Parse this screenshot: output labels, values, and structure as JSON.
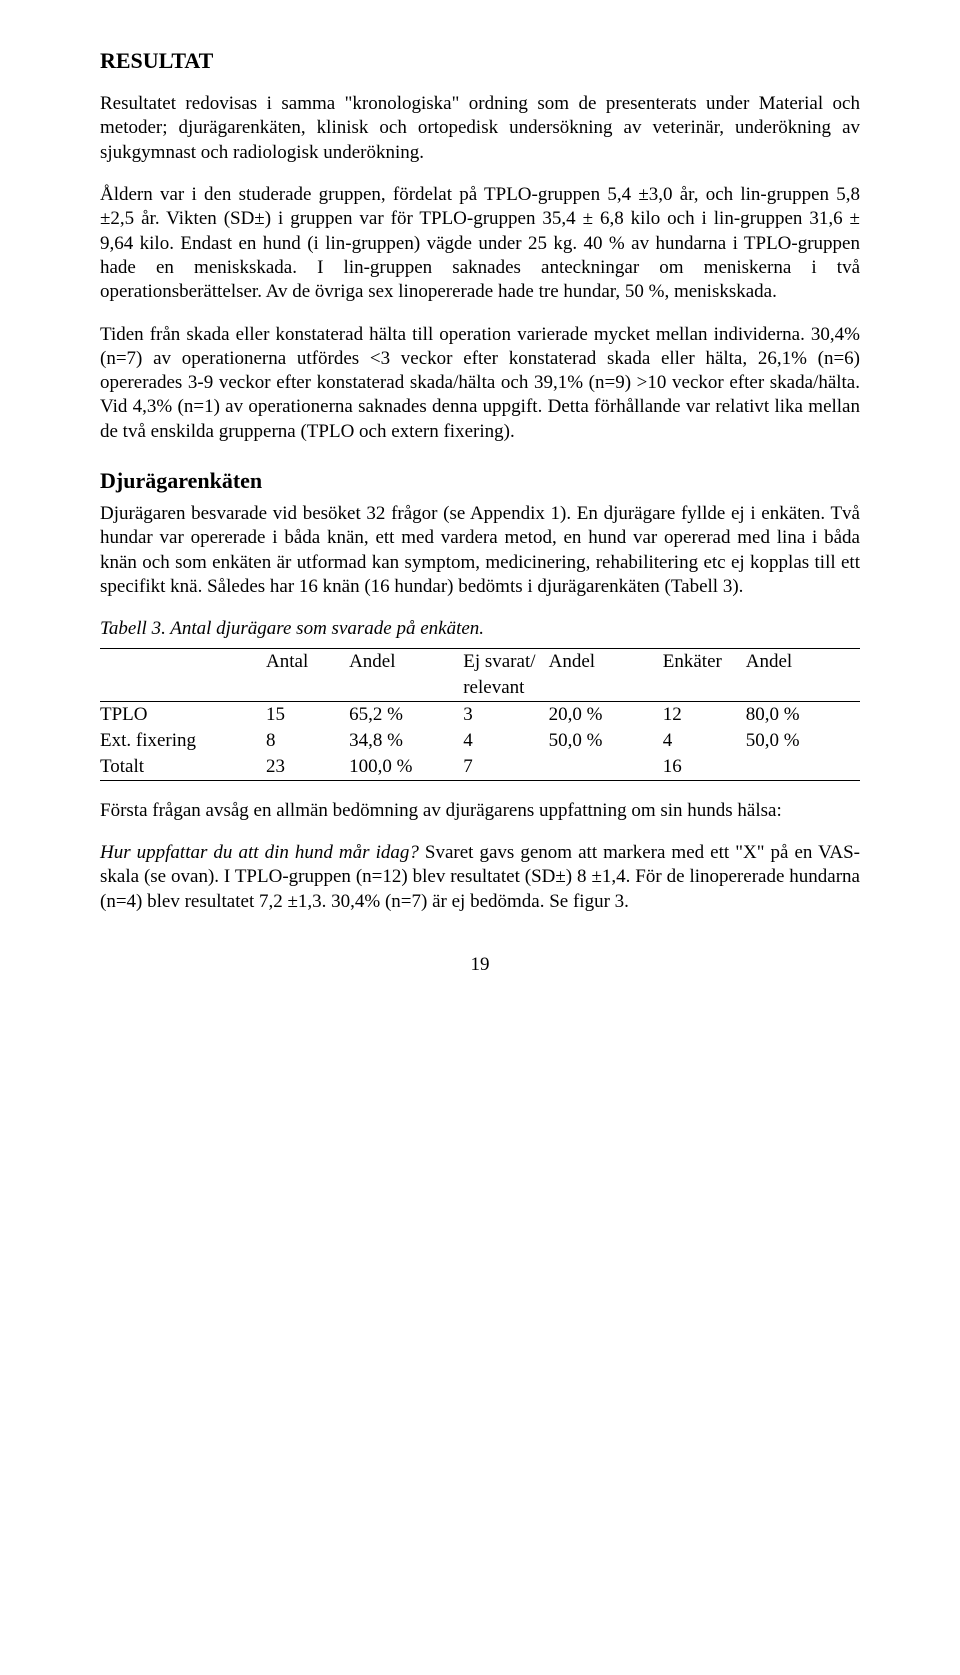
{
  "title": "RESULTAT",
  "para1": "Resultatet redovisas i samma \"kronologiska\" ordning som de presenterats under Material och metoder; djurägarenkäten, klinisk och ortopedisk undersökning av veterinär, underökning av sjukgymnast och radiologisk underökning.",
  "para2": "Åldern var i den studerade gruppen, fördelat på TPLO-gruppen 5,4 ±3,0 år, och lin-gruppen 5,8 ±2,5 år. Vikten (SD±) i gruppen var för TPLO-gruppen 35,4 ± 6,8 kilo och i lin-gruppen 31,6 ± 9,64 kilo. Endast en hund (i lin-gruppen) vägde under 25 kg. 40 % av hundarna i TPLO-gruppen hade en meniskskada. I lin-gruppen saknades anteckningar om meniskerna i två operationsberättelser. Av de övriga sex linopererade hade tre hundar, 50 %, meniskskada.",
  "para3": "Tiden från skada eller konstaterad hälta till operation varierade mycket mellan individerna. 30,4% (n=7) av operationerna utfördes <3 veckor efter konstaterad skada eller hälta, 26,1% (n=6) opererades 3-9 veckor efter konstaterad skada/hälta och 39,1% (n=9) >10 veckor efter skada/hälta. Vid 4,3% (n=1) av operationerna saknades denna uppgift. Detta förhållande var relativt lika mellan de två enskilda grupperna (TPLO och extern fixering).",
  "subheading": "Djurägarenkäten",
  "para4": "Djurägaren besvarade vid besöket 32 frågor (se Appendix 1). En djurägare fyllde ej i enkäten. Två hundar var opererade i båda knän, ett med vardera metod, en hund var opererad med lina i båda knän och som enkäten är utformad kan symptom, medicinering, rehabilitering etc ej kopplas till ett specifikt knä. Således har 16 knän (16 hundar) bedömts i djurägarenkäten (Tabell 3).",
  "table_caption": "Tabell 3. Antal djurägare som svarade på enkäten.",
  "table": {
    "headers1": [
      "",
      "Antal",
      "Andel",
      "Ej svarat/",
      "Andel",
      "Enkäter",
      "Andel"
    ],
    "headers2": [
      "",
      "",
      "",
      "relevant",
      "",
      "",
      ""
    ],
    "rows": [
      [
        "TPLO",
        "15",
        "65,2 %",
        "3",
        "20,0 %",
        "12",
        "80,0 %"
      ],
      [
        "Ext. fixering",
        "8",
        "34,8 %",
        "4",
        "50,0 %",
        "4",
        "50,0 %"
      ],
      [
        "Totalt",
        "23",
        "100,0 %",
        "7",
        "",
        "16",
        ""
      ]
    ]
  },
  "para5": "Första frågan avsåg en allmän bedömning av djurägarens uppfattning om sin hunds hälsa:",
  "para6_lead": "Hur uppfattar du att din hund mår idag?",
  "para6_rest": " Svaret gavs genom att markera med ett \"X\" på en VAS-skala (se ovan). I TPLO-gruppen (n=12) blev resultatet (SD±) 8 ±1,4. För de linopererade hundarna (n=4) blev resultatet 7,2 ±1,3. 30,4% (n=7) är ej bedömda. Se figur 3.",
  "page_number": "19"
}
